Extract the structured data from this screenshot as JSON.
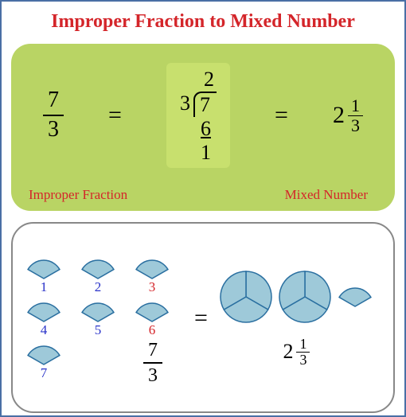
{
  "title": "Improper Fraction to Mixed Number",
  "title_color": "#d4252a",
  "panel_top": {
    "bg_color": "#b9d464",
    "fraction": {
      "num": "7",
      "den": "3"
    },
    "equals": "=",
    "longdiv": {
      "bg_color": "#c8e06e",
      "quotient": "2",
      "divisor": "3",
      "dividend": "7",
      "subtract": "6",
      "remainder": "1"
    },
    "mixed": {
      "whole": "2",
      "num": "1",
      "den": "3"
    },
    "label_left": "Improper Fraction",
    "label_right": "Mixed Number",
    "label_color": "#d4252a"
  },
  "panel_bottom": {
    "slice_fill": "#9ec9d9",
    "slice_stroke": "#2a6fa0",
    "labels": [
      {
        "n": "1",
        "color": "#2a33c9"
      },
      {
        "n": "2",
        "color": "#2a33c9"
      },
      {
        "n": "3",
        "color": "#d4252a"
      },
      {
        "n": "4",
        "color": "#2a33c9"
      },
      {
        "n": "5",
        "color": "#2a33c9"
      },
      {
        "n": "6",
        "color": "#d4252a"
      },
      {
        "n": "7",
        "color": "#2a33c9"
      }
    ],
    "left_fraction": {
      "num": "7",
      "den": "3"
    },
    "equals": "=",
    "mixed": {
      "whole": "2",
      "num": "1",
      "den": "3"
    }
  }
}
